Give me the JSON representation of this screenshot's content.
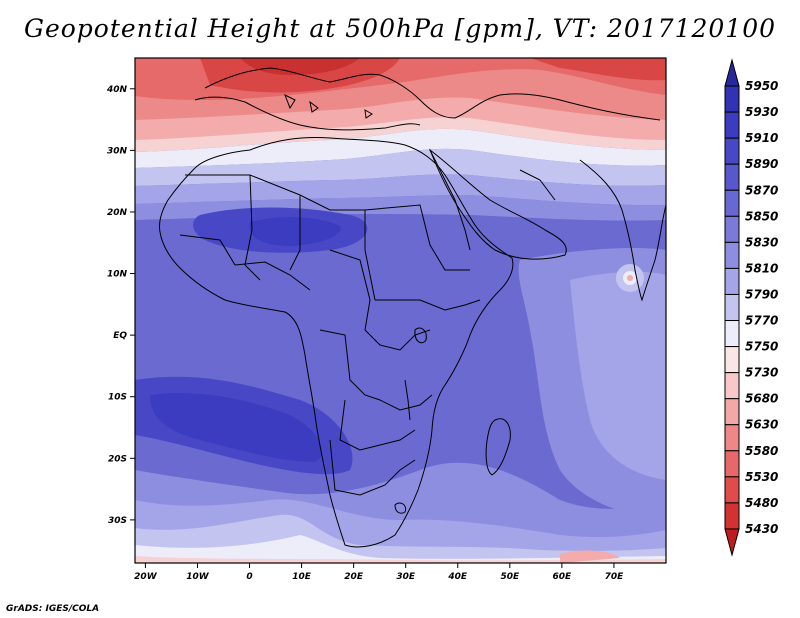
{
  "title": "Geopotential Height at 500hPa [gpm], VT: 2017120100",
  "credit": "GrADS: IGES/COLA",
  "map": {
    "lat_labels": [
      "40N",
      "30N",
      "20N",
      "10N",
      "EQ",
      "10S",
      "20S",
      "30S"
    ],
    "lat_values": [
      40,
      30,
      20,
      10,
      0,
      -10,
      -20,
      -30
    ],
    "lon_labels": [
      "20W",
      "10W",
      "0",
      "10E",
      "20E",
      "30E",
      "40E",
      "50E",
      "60E",
      "70E"
    ],
    "lon_values": [
      -20,
      -10,
      0,
      10,
      20,
      30,
      40,
      50,
      60,
      70
    ],
    "lon_range": [
      -22,
      80
    ],
    "lat_range": [
      -37,
      45
    ]
  },
  "colorbar": {
    "labels": [
      "5950",
      "5930",
      "5910",
      "5890",
      "5870",
      "5850",
      "5830",
      "5810",
      "5790",
      "5770",
      "5750",
      "5730",
      "5680",
      "5630",
      "5580",
      "5530",
      "5480",
      "5430"
    ],
    "colors": [
      "#27279e",
      "#3232b4",
      "#3c3cc0",
      "#4848c6",
      "#5858cc",
      "#6868d3",
      "#7a7ad9",
      "#8e8ee0",
      "#a4a4e8",
      "#c4c4f0",
      "#ececfa",
      "#fbe6e6",
      "#f8c8c8",
      "#f3a8a8",
      "#ee8888",
      "#e76868",
      "#df4c4c",
      "#d43232",
      "#c01e1e"
    ]
  }
}
